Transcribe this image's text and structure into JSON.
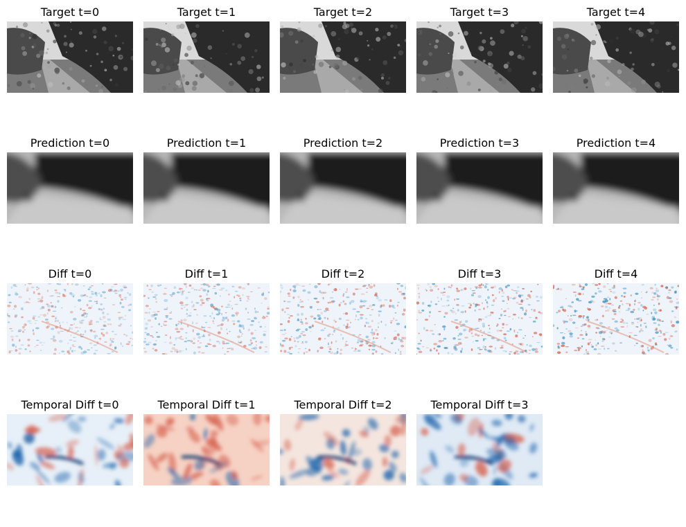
{
  "rows": [
    {
      "kind": "target",
      "titles": [
        "Target t=0",
        "Target t=1",
        "Target t=2",
        "Target t=3",
        "Target t=4"
      ]
    },
    {
      "kind": "prediction",
      "titles": [
        "Prediction t=0",
        "Prediction t=1",
        "Prediction t=2",
        "Prediction t=3",
        "Prediction t=4"
      ]
    },
    {
      "kind": "diff",
      "titles": [
        "Diff t=0",
        "Diff t=1",
        "Diff t=2",
        "Diff t=3",
        "Diff t=4"
      ]
    },
    {
      "kind": "temporal",
      "titles": [
        "Temporal Diff t=0",
        "Temporal Diff t=1",
        "Temporal Diff t=2",
        "Temporal Diff t=3"
      ]
    }
  ],
  "colors": {
    "diverging_red": "#c0392b",
    "diverging_blue": "#2166ac",
    "neutral": "#f7f7f7"
  }
}
